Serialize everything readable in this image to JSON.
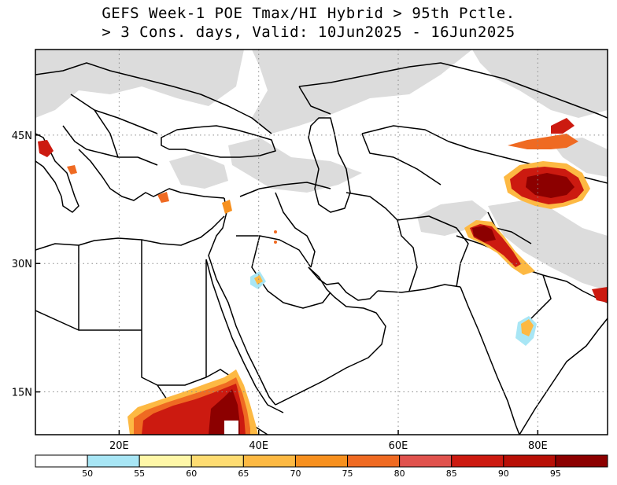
{
  "title": {
    "line1": "GEFS Week-1 POE Tmax/HI Hybrid > 95th Pctle.",
    "line2": "> 3 Cons. days, Valid: 10Jun2025 - 16Jun2025"
  },
  "axes": {
    "lat_ticks": [
      {
        "label": "45N",
        "value": 45
      },
      {
        "label": "30N",
        "value": 30
      },
      {
        "label": "15N",
        "value": 15
      }
    ],
    "lon_ticks": [
      {
        "label": "20E",
        "value": 20
      },
      {
        "label": "40E",
        "value": 40
      },
      {
        "label": "60E",
        "value": 60
      },
      {
        "label": "80E",
        "value": 80
      }
    ],
    "lon_range": [
      8,
      90
    ],
    "lat_range": [
      10,
      55
    ],
    "grid": "dotted"
  },
  "colorbar": {
    "labels": [
      "50",
      "55",
      "60",
      "65",
      "70",
      "75",
      "80",
      "85",
      "90",
      "95"
    ],
    "colors": [
      "#ffffff",
      "#a8e6f5",
      "#fff7a8",
      "#fedc72",
      "#fdb943",
      "#f7901e",
      "#ef6a22",
      "#e0524d",
      "#cc1a10",
      "#b80f06",
      "#8c0000"
    ]
  },
  "map": {
    "land_color": "#ffffff",
    "masked_color": "#dcdcdc",
    "boundary_color": "#000000"
  }
}
